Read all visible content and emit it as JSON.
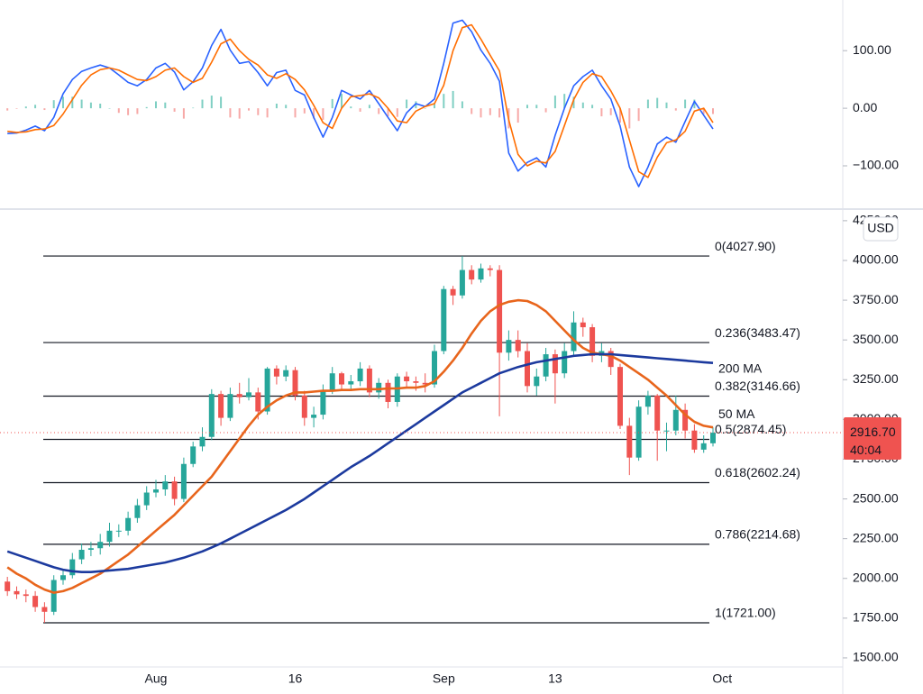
{
  "chart_data": [
    {
      "type": "line",
      "ylim": [
        -172,
        188
      ],
      "yticks": [
        {
          "value": 100,
          "label": "100.00"
        },
        {
          "value": 0,
          "label": "0.00"
        },
        {
          "value": -100,
          "label": "−100.00"
        }
      ],
      "series": [
        {
          "color": "#2962ff",
          "values": [
            -44,
            -43,
            -38,
            -31,
            -39,
            -16,
            25,
            50,
            64,
            70,
            75,
            70,
            58,
            45,
            39,
            50,
            70,
            78,
            63,
            32,
            46,
            70,
            109,
            137,
            101,
            78,
            81,
            62,
            39,
            62,
            66,
            31,
            23,
            -16,
            -50,
            -16,
            31,
            23,
            16,
            31,
            8,
            -16,
            -39,
            -8,
            8,
            3,
            16,
            78,
            148,
            153,
            133,
            101,
            78,
            47,
            -78,
            -109,
            -94,
            -86,
            -102,
            -47,
            0,
            39,
            55,
            66,
            39,
            16,
            -31,
            -102,
            -136,
            -102,
            -62,
            -50,
            -59,
            -23,
            12,
            -12,
            -36,
            null
          ]
        },
        {
          "color": "#ff6d00",
          "values": [
            -40,
            -42,
            -41,
            -37,
            -36,
            -30,
            -10,
            15,
            40,
            58,
            67,
            70,
            66,
            58,
            50,
            48,
            55,
            66,
            70,
            55,
            45,
            52,
            80,
            112,
            120,
            100,
            85,
            75,
            58,
            52,
            60,
            50,
            32,
            5,
            -25,
            -35,
            0,
            20,
            22,
            25,
            18,
            0,
            -22,
            -25,
            -5,
            3,
            8,
            40,
            100,
            140,
            145,
            120,
            92,
            65,
            -20,
            -80,
            -100,
            -92,
            -95,
            -75,
            -30,
            15,
            45,
            60,
            55,
            30,
            0,
            -55,
            -110,
            -120,
            -85,
            -60,
            -55,
            -40,
            -5,
            0,
            -25,
            null
          ]
        }
      ],
      "bars": {
        "up_color": "#7fcfc3",
        "down_color": "#f7a9a7",
        "values": [
          -4,
          -1,
          3,
          6,
          -3,
          14,
          20,
          20,
          15,
          10,
          8,
          0,
          -8,
          -12,
          -10,
          2,
          12,
          10,
          -6,
          -18,
          1,
          15,
          22,
          20,
          -16,
          -18,
          -4,
          -12,
          -16,
          8,
          6,
          -16,
          -9,
          -18,
          -20,
          16,
          25,
          3,
          -6,
          6,
          -10,
          -14,
          -15,
          15,
          12,
          0,
          8,
          25,
          30,
          12,
          -10,
          -16,
          -12,
          -16,
          -35,
          -25,
          6,
          6,
          -7,
          22,
          25,
          20,
          10,
          6,
          -14,
          -12,
          -25,
          -35,
          -22,
          15,
          18,
          10,
          -4,
          15,
          15,
          -10,
          -10,
          null
        ]
      }
    },
    {
      "type": "candlestick",
      "unit": "USD",
      "ylim": [
        1443,
        4306
      ],
      "yticks": [
        {
          "value": 1500,
          "label": "1500.00"
        },
        {
          "value": 1750,
          "label": "1750.00"
        },
        {
          "value": 2000,
          "label": "2000.00"
        },
        {
          "value": 2250,
          "label": "2250.00"
        },
        {
          "value": 2500,
          "label": "2500.00"
        },
        {
          "value": 2750,
          "label": "2750.00"
        },
        {
          "value": 3000,
          "label": "3000.00"
        },
        {
          "value": 3250,
          "label": "3250.00"
        },
        {
          "value": 3500,
          "label": "3500.00"
        },
        {
          "value": 3750,
          "label": "3750.00"
        },
        {
          "value": 4000,
          "label": "4000.00"
        },
        {
          "value": 4250,
          "label": "4250.00"
        }
      ],
      "categories": [
        null,
        null,
        null,
        null,
        null,
        null,
        null,
        null,
        null,
        null,
        null,
        null,
        null,
        null,
        null,
        null,
        "Aug",
        null,
        null,
        null,
        null,
        null,
        null,
        null,
        null,
        null,
        null,
        null,
        null,
        null,
        null,
        "16",
        null,
        null,
        null,
        null,
        null,
        null,
        null,
        null,
        null,
        null,
        null,
        null,
        null,
        null,
        null,
        "Sep",
        null,
        null,
        null,
        null,
        null,
        null,
        null,
        null,
        null,
        null,
        null,
        "13",
        null,
        null,
        null,
        null,
        null,
        null,
        null,
        null,
        null,
        null,
        null,
        null,
        null,
        null,
        null,
        null,
        null,
        "Oct"
      ],
      "up_color": "#26a69a",
      "down_color": "#ef5350",
      "open": [
        1980,
        1920,
        1900,
        1890,
        1820,
        1790,
        1990,
        2020,
        2120,
        2180,
        2190,
        2230,
        2300,
        2300,
        2380,
        2460,
        2540,
        2560,
        2610,
        2500,
        2720,
        2830,
        2890,
        3160,
        3010,
        3160,
        3140,
        3170,
        3050,
        3320,
        3270,
        3310,
        3150,
        3010,
        3030,
        3180,
        3290,
        3220,
        3240,
        3320,
        3170,
        3230,
        3110,
        3270,
        3240,
        3230,
        3220,
        3430,
        3820,
        3780,
        3940,
        3880,
        3950,
        3940,
        3420,
        3500,
        3430,
        3210,
        3270,
        3410,
        3290,
        3430,
        3610,
        3580,
        3400,
        3430,
        3330,
        2960,
        2760,
        3080,
        3150,
        2930,
        2930,
        3060,
        2930,
        2810,
        2850,
        null
      ],
      "high": [
        2010,
        1950,
        1930,
        1920,
        1850,
        2020,
        2060,
        2160,
        2220,
        2230,
        2280,
        2350,
        2340,
        2420,
        2500,
        2580,
        2620,
        2650,
        2640,
        2760,
        2860,
        2950,
        3190,
        3180,
        3200,
        3230,
        3260,
        3200,
        3330,
        3340,
        3340,
        3330,
        3180,
        3080,
        3220,
        3330,
        3300,
        3280,
        3360,
        3340,
        3260,
        3250,
        3290,
        3300,
        3270,
        3290,
        3470,
        3840,
        3840,
        4027.9,
        3970,
        3980,
        3970,
        3970,
        3560,
        3560,
        3480,
        3320,
        3450,
        3440,
        3480,
        3680,
        3640,
        3600,
        3480,
        3450,
        3350,
        3010,
        3120,
        3180,
        3160,
        2980,
        3150,
        3100,
        2970,
        2900,
        2950,
        null
      ],
      "low": [
        1890,
        1870,
        1850,
        1790,
        1721,
        1770,
        1960,
        2000,
        2090,
        2140,
        2150,
        2200,
        2260,
        2270,
        2350,
        2430,
        2510,
        2520,
        2460,
        2480,
        2700,
        2800,
        2870,
        2960,
        2990,
        3100,
        3120,
        3000,
        3030,
        3220,
        3240,
        3120,
        2960,
        2950,
        3000,
        3160,
        3190,
        3190,
        3210,
        3140,
        3130,
        3070,
        3080,
        3200,
        3180,
        3170,
        3200,
        3410,
        3720,
        3760,
        3850,
        3860,
        3900,
        3020,
        3370,
        3390,
        3170,
        3150,
        3240,
        3100,
        3260,
        3400,
        3520,
        3360,
        3360,
        3280,
        2940,
        2650,
        2740,
        3030,
        2740,
        2800,
        2900,
        2880,
        2790,
        2790,
        2830,
        null
      ],
      "close": [
        1920,
        1900,
        1890,
        1820,
        1790,
        1990,
        2020,
        2120,
        2180,
        2190,
        2230,
        2300,
        2300,
        2380,
        2460,
        2540,
        2560,
        2610,
        2500,
        2720,
        2830,
        2890,
        3160,
        3010,
        3160,
        3140,
        3170,
        3050,
        3320,
        3270,
        3310,
        3150,
        3010,
        3030,
        3180,
        3290,
        3220,
        3240,
        3320,
        3170,
        3230,
        3110,
        3270,
        3240,
        3230,
        3220,
        3430,
        3820,
        3780,
        3940,
        3880,
        3950,
        3940,
        3420,
        3500,
        3430,
        3210,
        3270,
        3410,
        3290,
        3430,
        3610,
        3580,
        3400,
        3430,
        3330,
        2960,
        2760,
        3080,
        3150,
        2930,
        2930,
        3060,
        2930,
        2810,
        2850,
        2916.7,
        null
      ],
      "series": [
        {
          "name": "50 MA",
          "color": "#e8651c",
          "values": [
            2070,
            2030,
            2000,
            1960,
            1930,
            1910,
            1920,
            1940,
            1970,
            2000,
            2030,
            2070,
            2110,
            2150,
            2200,
            2250,
            2300,
            2350,
            2400,
            2460,
            2520,
            2580,
            2640,
            2720,
            2800,
            2880,
            2960,
            3030,
            3080,
            3120,
            3150,
            3170,
            3170,
            3175,
            3180,
            3180,
            3185,
            3185,
            3190,
            3190,
            3190,
            3195,
            3195,
            3200,
            3200,
            3210,
            3240,
            3300,
            3370,
            3450,
            3540,
            3620,
            3680,
            3720,
            3740,
            3750,
            3745,
            3720,
            3680,
            3620,
            3560,
            3500,
            3450,
            3420,
            3410,
            3400,
            3370,
            3330,
            3290,
            3250,
            3200,
            3150,
            3090,
            3030,
            2985,
            2960,
            2950,
            null
          ]
        },
        {
          "name": "200 MA",
          "color": "#1c3a9e",
          "values": [
            2170,
            2150,
            2130,
            2110,
            2090,
            2070,
            2055,
            2045,
            2040,
            2040,
            2045,
            2050,
            2055,
            2060,
            2070,
            2080,
            2090,
            2100,
            2115,
            2130,
            2150,
            2170,
            2195,
            2220,
            2250,
            2280,
            2310,
            2340,
            2370,
            2400,
            2430,
            2465,
            2500,
            2540,
            2580,
            2620,
            2660,
            2700,
            2735,
            2770,
            2810,
            2850,
            2890,
            2930,
            2970,
            3010,
            3050,
            3090,
            3130,
            3170,
            3200,
            3230,
            3260,
            3290,
            3310,
            3330,
            3345,
            3360,
            3370,
            3380,
            3390,
            3400,
            3405,
            3410,
            3410,
            3410,
            3405,
            3400,
            3395,
            3390,
            3385,
            3380,
            3375,
            3370,
            3365,
            3360,
            3355,
            null
          ]
        }
      ],
      "fib_levels": [
        {
          "value": 4027.9,
          "label": "0(4027.90)"
        },
        {
          "value": 3483.47,
          "label": "0.236(3483.47)"
        },
        {
          "value": 3146.66,
          "label": "0.382(3146.66)"
        },
        {
          "value": 2874.45,
          "label": "0.5(2874.45)"
        },
        {
          "value": 2602.24,
          "label": "0.618(2602.24)"
        },
        {
          "value": 2214.68,
          "label": "0.786(2214.68)"
        },
        {
          "value": 1721,
          "label": "1(1721.00)"
        }
      ],
      "last_price": {
        "value": 2916.7,
        "label": "2916.70",
        "countdown": "40:04",
        "color": "#ef5350"
      }
    }
  ]
}
